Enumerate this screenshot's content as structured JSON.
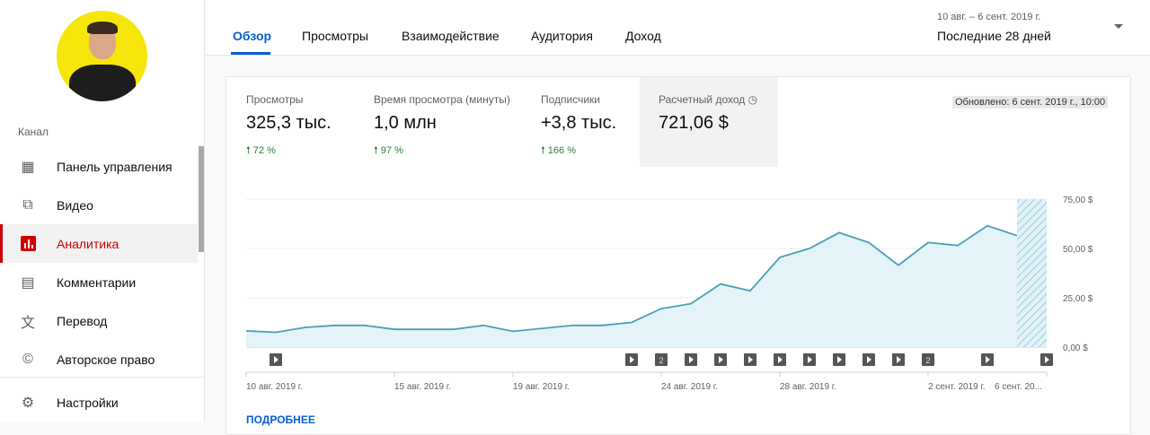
{
  "sidebar": {
    "section_label": "Канал",
    "items": [
      {
        "label": "Панель управления",
        "icon": "dashboard-icon"
      },
      {
        "label": "Видео",
        "icon": "video-library-icon"
      },
      {
        "label": "Аналитика",
        "icon": "analytics-icon",
        "active": true
      },
      {
        "label": "Комментарии",
        "icon": "comment-icon"
      },
      {
        "label": "Перевод",
        "icon": "translate-icon"
      },
      {
        "label": "Авторское право",
        "icon": "copyright-icon"
      },
      {
        "label": "Настройки",
        "icon": "gear-icon"
      }
    ]
  },
  "tabs": [
    {
      "label": "Обзор",
      "active": true
    },
    {
      "label": "Просмотры"
    },
    {
      "label": "Взаимодействие"
    },
    {
      "label": "Аудитория"
    },
    {
      "label": "Доход"
    }
  ],
  "date_picker": {
    "range": "10 авг. – 6 сент. 2019 г.",
    "period": "Последние 28 дней"
  },
  "metrics": [
    {
      "label": "Просмотры",
      "value": "325,3 тыс.",
      "change": "72 %"
    },
    {
      "label": "Время просмотра (минуты)",
      "value": "1,0 млн",
      "change": "97 %"
    },
    {
      "label": "Подписчики",
      "value": "+3,8 тыс.",
      "change": "166 %"
    },
    {
      "label": "Расчетный доход",
      "value": "721,06 $",
      "selected": true
    }
  ],
  "updated": "Обновлено: 6 сент. 2019 г., 10:00",
  "more_link": "ПОДРОБНЕЕ",
  "colors": {
    "accent": "#065fd4",
    "active_nav": "#cc0000",
    "line": "#4a9fb5",
    "fill": "#e3f3f8",
    "positive": "#2e7d32"
  },
  "chart_data": {
    "type": "area",
    "x": [
      "2019-08-10",
      "2019-08-11",
      "2019-08-12",
      "2019-08-13",
      "2019-08-14",
      "2019-08-15",
      "2019-08-16",
      "2019-08-17",
      "2019-08-18",
      "2019-08-19",
      "2019-08-20",
      "2019-08-21",
      "2019-08-22",
      "2019-08-23",
      "2019-08-24",
      "2019-08-25",
      "2019-08-26",
      "2019-08-27",
      "2019-08-28",
      "2019-08-29",
      "2019-08-30",
      "2019-08-31",
      "2019-09-01",
      "2019-09-02",
      "2019-09-03",
      "2019-09-04",
      "2019-09-05"
    ],
    "values": [
      8.2,
      7.5,
      10,
      11,
      11,
      9,
      9,
      9,
      11,
      8,
      9.5,
      11,
      11,
      12.5,
      19.5,
      22,
      32,
      28.5,
      45.5,
      50,
      58,
      53,
      41.5,
      53,
      51.5,
      61.5,
      56.5
    ],
    "incomplete_day": "2019-09-06",
    "ylim": [
      0,
      75
    ],
    "y_ticks": [
      "0,00 $",
      "25,00 $",
      "50,00 $",
      "75,00 $"
    ],
    "x_tick_labels": [
      {
        "day": 0,
        "label": "10 авг. 2019 г."
      },
      {
        "day": 5,
        "label": "15 авг. 2019 г."
      },
      {
        "day": 9,
        "label": "19 авг. 2019 г."
      },
      {
        "day": 14,
        "label": "24 авг. 2019 г."
      },
      {
        "day": 18,
        "label": "28 авг. 2019 г."
      },
      {
        "day": 23,
        "label": "2 сент. 2019 г."
      },
      {
        "day": 27,
        "label": "6 сент. 20..."
      }
    ],
    "video_markers": [
      {
        "day": 1,
        "count": 1
      },
      {
        "day": 13,
        "count": 1
      },
      {
        "day": 14,
        "count": 2
      },
      {
        "day": 15,
        "count": 1
      },
      {
        "day": 16,
        "count": 1
      },
      {
        "day": 17,
        "count": 1
      },
      {
        "day": 18,
        "count": 1
      },
      {
        "day": 19,
        "count": 1
      },
      {
        "day": 20,
        "count": 1
      },
      {
        "day": 21,
        "count": 1
      },
      {
        "day": 22,
        "count": 1
      },
      {
        "day": 23,
        "count": 2
      },
      {
        "day": 25,
        "count": 1
      },
      {
        "day": 27,
        "count": 1
      }
    ],
    "grid": true,
    "axis_position": "right"
  }
}
